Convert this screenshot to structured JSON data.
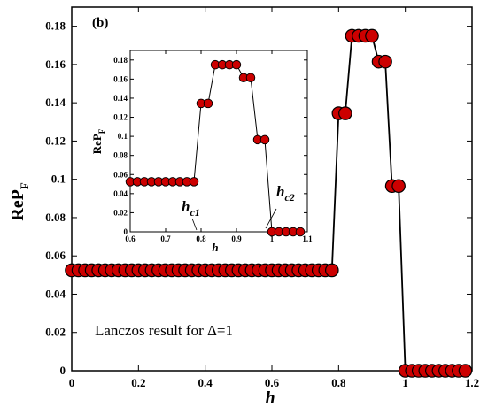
{
  "chart_data": [
    {
      "type": "line",
      "panel_label": "(b)",
      "xlabel": "h",
      "ylabel_main": "ReP",
      "ylabel_sub": "F",
      "xlim": [
        0,
        1.2
      ],
      "ylim": [
        0,
        0.19
      ],
      "xticks": [
        0,
        0.2,
        0.4,
        0.6,
        0.8,
        1,
        1.2
      ],
      "xtick_labels": [
        "0",
        "0.2",
        "0.4",
        "0.6",
        "0.8",
        "1",
        "1.2"
      ],
      "yticks": [
        0,
        0.02,
        0.04,
        0.06,
        0.08,
        0.1,
        0.12,
        0.14,
        0.16,
        0.18
      ],
      "ytick_labels": [
        "0",
        "0.02",
        "0.04",
        "0.06",
        "0.08",
        "0.1",
        "0.12",
        "0.14",
        "0.16",
        "0.18"
      ],
      "annotation": "Lanczos result for Δ=1",
      "series": [
        {
          "x": [
            0,
            0.02,
            0.04,
            0.06,
            0.08,
            0.1,
            0.12,
            0.14,
            0.16,
            0.18,
            0.2,
            0.22,
            0.24,
            0.26,
            0.28,
            0.3,
            0.32,
            0.34,
            0.36,
            0.38,
            0.4,
            0.42,
            0.44,
            0.46,
            0.48,
            0.5,
            0.52,
            0.54,
            0.56,
            0.58,
            0.6,
            0.62,
            0.64,
            0.66,
            0.68,
            0.7,
            0.72,
            0.74,
            0.76,
            0.78,
            0.8,
            0.82,
            0.84,
            0.86,
            0.88,
            0.9,
            0.92,
            0.94,
            0.96,
            0.98,
            1.0,
            1.02,
            1.04,
            1.06,
            1.08,
            1.1,
            1.12,
            1.14,
            1.16,
            1.18
          ],
          "y": [
            0.0525,
            0.0525,
            0.0525,
            0.0525,
            0.0525,
            0.0525,
            0.0525,
            0.0525,
            0.0525,
            0.0525,
            0.0525,
            0.0525,
            0.0525,
            0.0525,
            0.0525,
            0.0525,
            0.0525,
            0.0525,
            0.0525,
            0.0525,
            0.0525,
            0.0525,
            0.0525,
            0.0525,
            0.0525,
            0.0525,
            0.0525,
            0.0525,
            0.0525,
            0.0525,
            0.0525,
            0.0525,
            0.0525,
            0.0525,
            0.0525,
            0.0525,
            0.0525,
            0.0525,
            0.0525,
            0.0525,
            0.1345,
            0.1345,
            0.175,
            0.175,
            0.175,
            0.175,
            0.1615,
            0.1615,
            0.0965,
            0.0965,
            0,
            0,
            0,
            0,
            0,
            0,
            0,
            0,
            0,
            0
          ]
        }
      ]
    },
    {
      "type": "line",
      "role": "inset",
      "xlabel": "h",
      "ylabel_main": "ReP",
      "ylabel_sub": "F",
      "xlim": [
        0.6,
        1.1
      ],
      "ylim": [
        0,
        0.19
      ],
      "xticks": [
        0.6,
        0.7,
        0.8,
        0.9,
        1.0,
        1.1
      ],
      "xtick_labels": [
        "0.6",
        "0.7",
        "0.8",
        "0.9",
        "1",
        "1.1"
      ],
      "yticks": [
        0,
        0.02,
        0.04,
        0.06,
        0.08,
        0.1,
        0.12,
        0.14,
        0.16,
        0.18
      ],
      "ytick_labels": [
        "0",
        "0.02",
        "0.04",
        "0.06",
        "0.08",
        "0.1",
        "0.12",
        "0.14",
        "0.16",
        "0.18"
      ],
      "annotations": [
        {
          "main": "h",
          "sub": "c1",
          "x": 0.8,
          "y": 0
        },
        {
          "main": "h",
          "sub": "c2",
          "x": 1.0,
          "y": 0
        }
      ],
      "series": [
        {
          "x": [
            0.6,
            0.62,
            0.64,
            0.66,
            0.68,
            0.7,
            0.72,
            0.74,
            0.76,
            0.78,
            0.8,
            0.82,
            0.84,
            0.86,
            0.88,
            0.9,
            0.92,
            0.94,
            0.96,
            0.98,
            1.0,
            1.02,
            1.04,
            1.06,
            1.08
          ],
          "y": [
            0.0525,
            0.0525,
            0.0525,
            0.0525,
            0.0525,
            0.0525,
            0.0525,
            0.0525,
            0.0525,
            0.0525,
            0.1345,
            0.1345,
            0.175,
            0.175,
            0.175,
            0.175,
            0.1615,
            0.1615,
            0.0965,
            0.0965,
            0,
            0,
            0,
            0,
            0
          ]
        }
      ]
    }
  ]
}
